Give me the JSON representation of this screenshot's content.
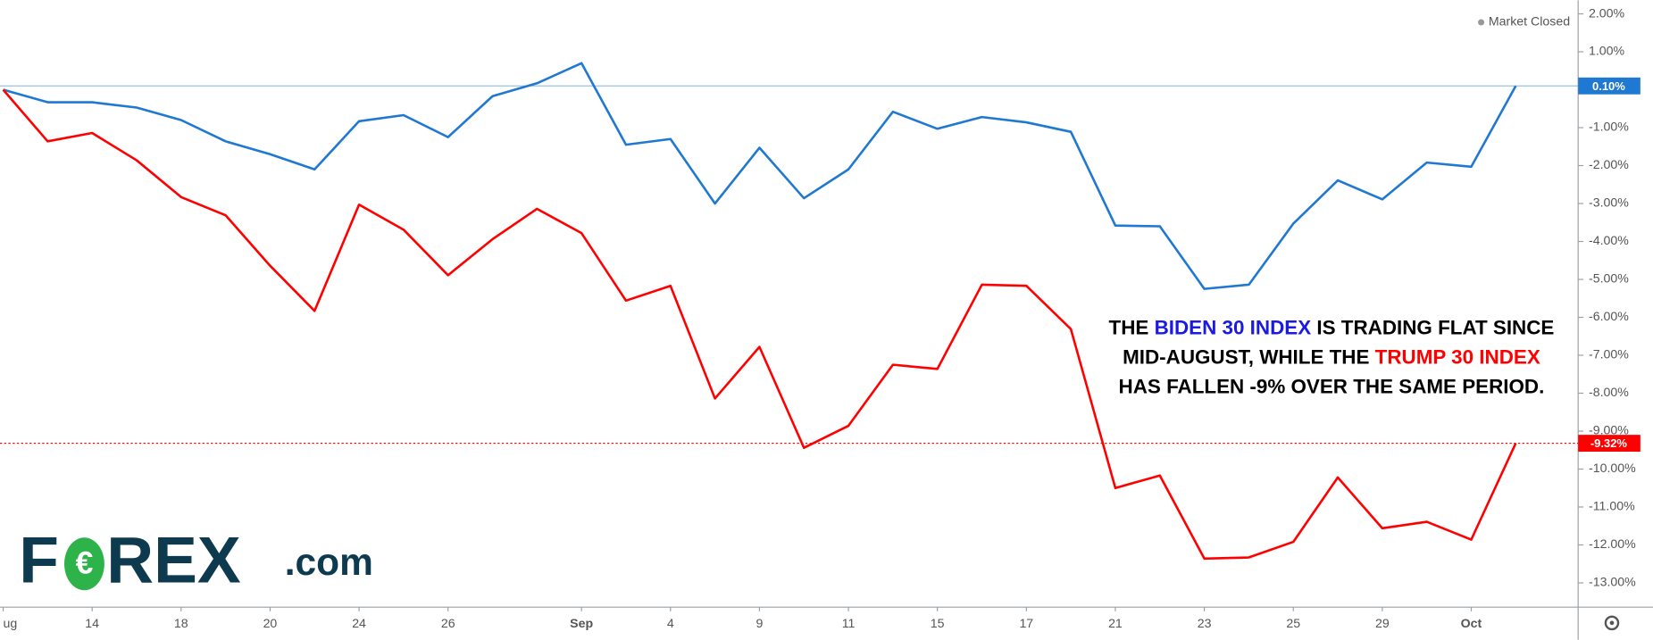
{
  "chart_data": {
    "type": "line",
    "status": "Market Closed",
    "categories": [
      "ug",
      null,
      "14",
      null,
      "18",
      null,
      "20",
      null,
      "24",
      null,
      "26",
      null,
      null,
      "Sep",
      null,
      "4",
      null,
      "9",
      null,
      "11",
      null,
      "15",
      null,
      "17",
      null,
      "21",
      null,
      "23",
      null,
      "25",
      null,
      "29",
      null,
      "Oct",
      null
    ],
    "series": [
      {
        "color": "#1f78d1",
        "end_label": "0.10%",
        "values": [
          0,
          -0.33,
          -0.33,
          -0.47,
          -0.8,
          -1.36,
          -1.7,
          -2.1,
          -0.83,
          -0.67,
          -1.25,
          -0.17,
          0.17,
          0.7,
          -1.45,
          -1.3,
          -3.0,
          -1.53,
          -2.86,
          -2.1,
          -0.58,
          -1.03,
          -0.72,
          -0.86,
          -1.11,
          -3.58,
          -3.6,
          -5.25,
          -5.14,
          -3.53,
          -2.39,
          -2.89,
          -1.92,
          -2.03,
          0.1
        ]
      },
      {
        "color": "#ff0000",
        "end_label": "-9.32%",
        "values": [
          0,
          -1.36,
          -1.14,
          -1.86,
          -2.83,
          -3.31,
          -4.64,
          -5.83,
          -3.03,
          -3.69,
          -4.89,
          -3.94,
          -3.14,
          -3.78,
          -5.56,
          -5.17,
          -8.14,
          -6.78,
          -9.44,
          -8.86,
          -7.25,
          -7.36,
          -5.14,
          -5.17,
          -6.31,
          -10.5,
          -10.17,
          -12.36,
          -12.33,
          -11.92,
          -10.22,
          -11.56,
          -11.39,
          -11.86,
          -9.32
        ]
      }
    ],
    "ylim": [
      -13.64,
      2.36
    ],
    "yticks": [
      {
        "value": 2,
        "label": "2.00%"
      },
      {
        "value": 1,
        "label": "1.00%"
      },
      {
        "value": -1,
        "label": "-1.00%"
      },
      {
        "value": -2,
        "label": "-2.00%"
      },
      {
        "value": -3,
        "label": "-3.00%"
      },
      {
        "value": -4,
        "label": "-4.00%"
      },
      {
        "value": -5,
        "label": "-5.00%"
      },
      {
        "value": -6,
        "label": "-6.00%"
      },
      {
        "value": -7,
        "label": "-7.00%"
      },
      {
        "value": -8,
        "label": "-8.00%"
      },
      {
        "value": -9,
        "label": "-9.00%"
      },
      {
        "value": -10,
        "label": "-10.00%"
      },
      {
        "value": -11,
        "label": "-11.00%"
      },
      {
        "value": -12,
        "label": "-12.00%"
      },
      {
        "value": -13,
        "label": "-13.00%"
      }
    ],
    "annotation": [
      [
        {
          "text": "THE "
        },
        {
          "text": "BIDEN 30 INDEX",
          "color": "#1a1ae0"
        },
        {
          "text": " IS TRADING FLAT SINCE"
        }
      ],
      [
        {
          "text": "MID-AUGUST, WHILE THE "
        },
        {
          "text": "TRUMP 30 INDEX",
          "color": "#ff0000"
        }
      ],
      [
        {
          "text": "HAS FALLEN -9% OVER THE SAME PERIOD."
        }
      ]
    ],
    "logo": {
      "left": "F",
      "right": "REX",
      "suffix": ".com"
    }
  }
}
